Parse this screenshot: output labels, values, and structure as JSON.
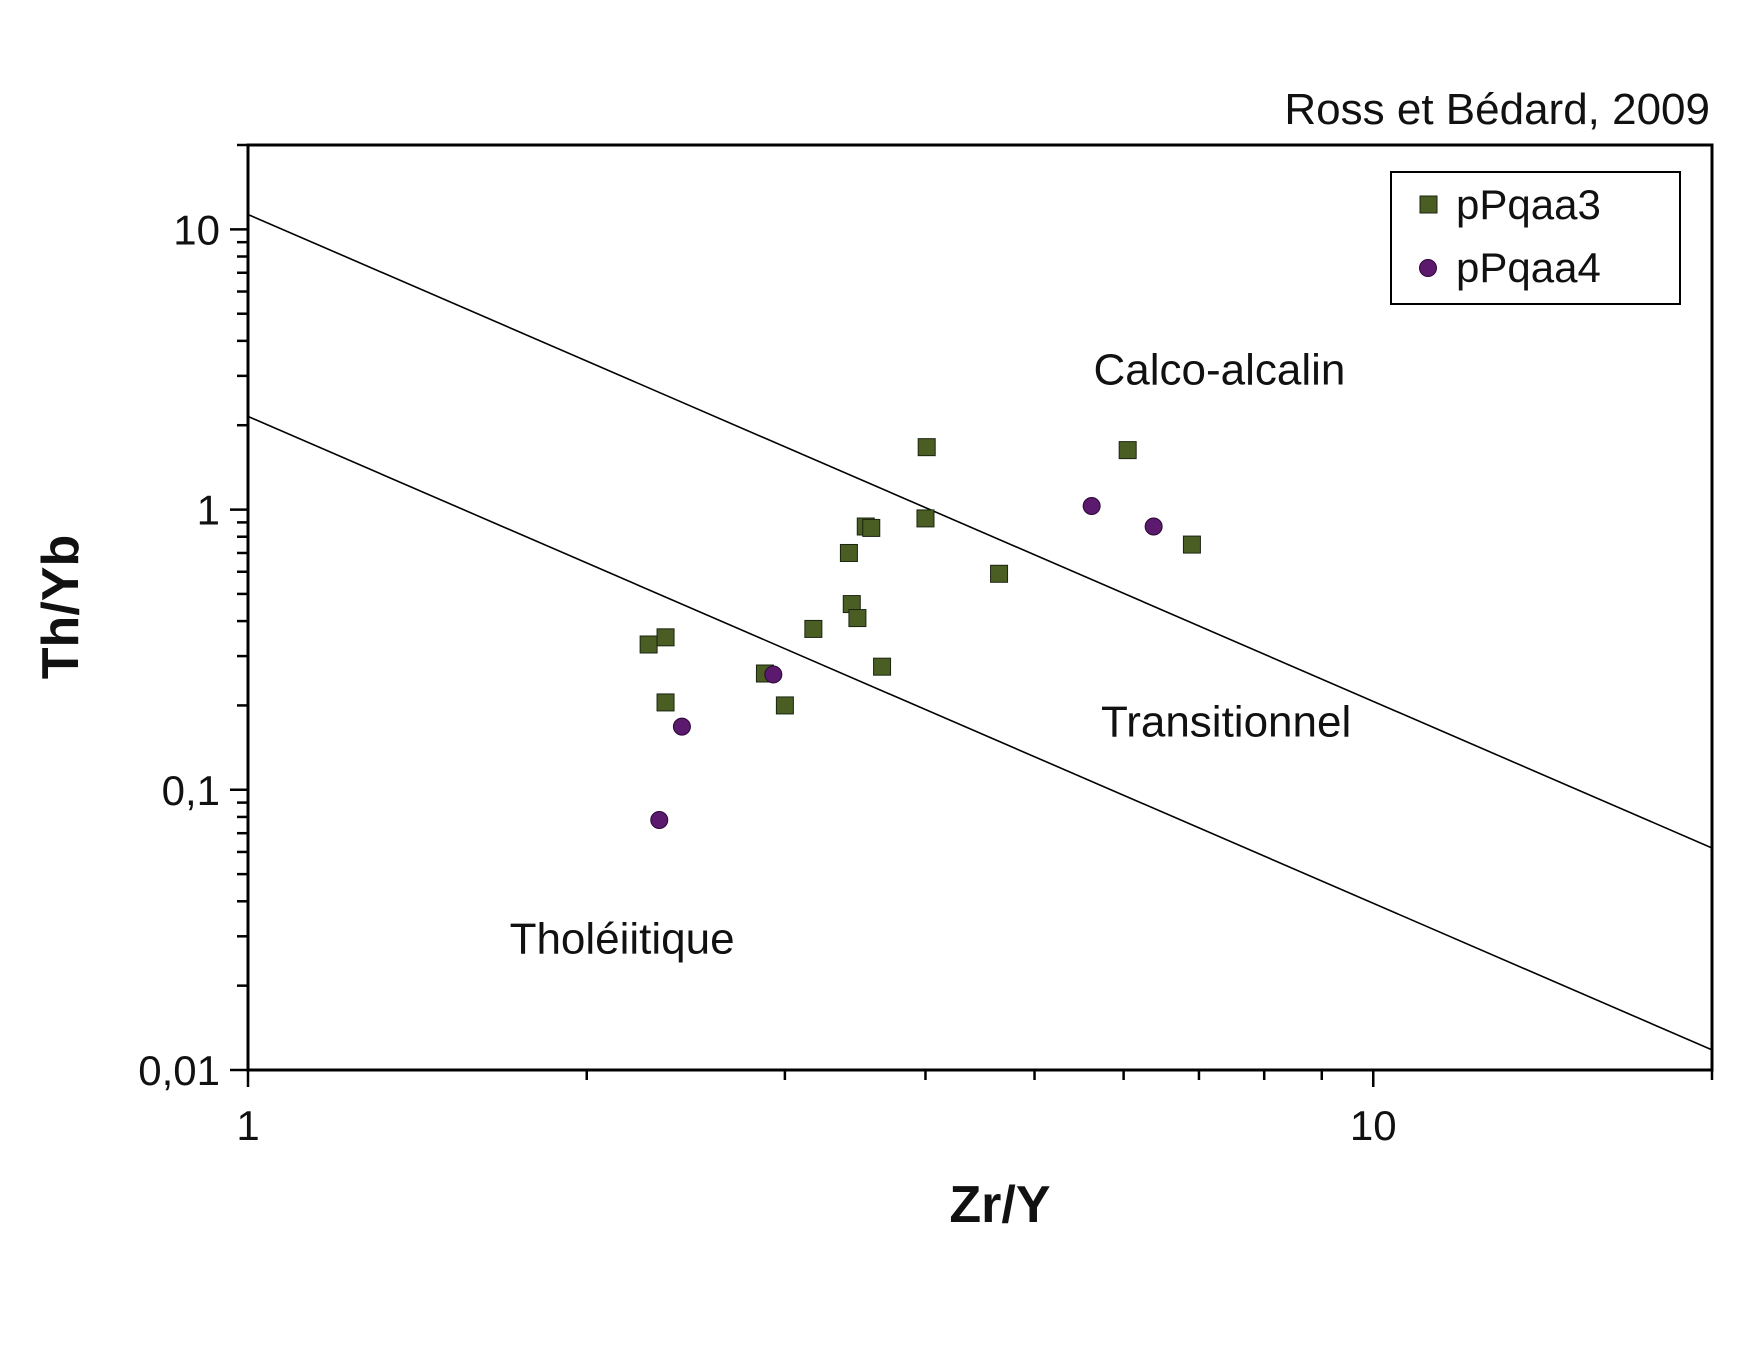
{
  "chart_data": {
    "type": "scatter",
    "title": "Ross et Bédard, 2009",
    "xlabel": "Zr/Y",
    "ylabel": "Th/Yb",
    "xscale": "log",
    "yscale": "log",
    "xlim": [
      1,
      20
    ],
    "ylim": [
      0.01,
      20
    ],
    "x_ticks": [
      {
        "value": 1,
        "label": "1"
      },
      {
        "value": 10,
        "label": "10"
      }
    ],
    "y_ticks": [
      {
        "value": 0.01,
        "label": "0,01"
      },
      {
        "value": 0.1,
        "label": "0,1"
      },
      {
        "value": 1,
        "label": "1"
      },
      {
        "value": 10,
        "label": "10"
      }
    ],
    "grid": false,
    "legend_position": "top-right",
    "boundaries": [
      {
        "name": "calc-alkaline-transitional",
        "points": [
          [
            1,
            11.3
          ],
          [
            20,
            0.062
          ]
        ]
      },
      {
        "name": "transitional-tholeiitic",
        "points": [
          [
            1,
            2.15
          ],
          [
            20,
            0.0118
          ]
        ]
      }
    ],
    "annotations": [
      {
        "text": "Calco-alcalin",
        "x": 7.3,
        "y": 2.8
      },
      {
        "text": "Transitionnel",
        "x": 7.4,
        "y": 0.155
      },
      {
        "text": "Tholéiitique",
        "x": 2.15,
        "y": 0.026
      }
    ],
    "series": [
      {
        "name": "pPqaa3",
        "marker": "square",
        "color": "#4a5e23",
        "points": [
          [
            2.27,
            0.33
          ],
          [
            2.35,
            0.35
          ],
          [
            2.35,
            0.205
          ],
          [
            2.88,
            0.26
          ],
          [
            3.0,
            0.2
          ],
          [
            3.18,
            0.375
          ],
          [
            3.42,
            0.7
          ],
          [
            3.44,
            0.46
          ],
          [
            3.48,
            0.41
          ],
          [
            3.54,
            0.87
          ],
          [
            3.58,
            0.86
          ],
          [
            3.66,
            0.275
          ],
          [
            4.01,
            1.67
          ],
          [
            4.0,
            0.93
          ],
          [
            4.65,
            0.59
          ],
          [
            6.05,
            1.63
          ],
          [
            6.9,
            0.75
          ]
        ]
      },
      {
        "name": "pPqaa4",
        "marker": "circle",
        "color": "#5b1a6e",
        "points": [
          [
            2.32,
            0.078
          ],
          [
            2.43,
            0.168
          ],
          [
            2.93,
            0.258
          ],
          [
            5.62,
            1.03
          ],
          [
            6.38,
            0.87
          ]
        ]
      }
    ]
  }
}
